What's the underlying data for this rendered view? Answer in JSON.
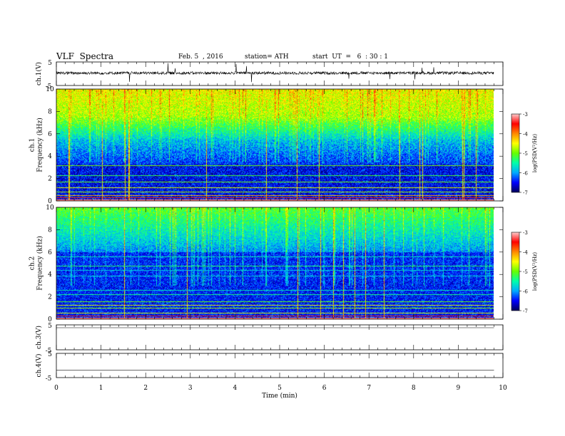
{
  "header": {
    "title": "VLF  Spectra",
    "date": "Feb. 5  , 2016",
    "station": "station= ATH",
    "start": "start  UT  =   6  : 30 : 1"
  },
  "colors": {
    "spectrogram_scale": [
      "#00005a",
      "#0000ff",
      "#00aaff",
      "#00ffaa",
      "#66ff00",
      "#ffff00",
      "#ff8800",
      "#ff0000",
      "#ffcccc"
    ],
    "trace": "#000000"
  },
  "chart_data": [
    {
      "type": "line",
      "panel": "ch1-waveform",
      "ylabel": "ch.1(V)",
      "yticks": [
        "5",
        "-5"
      ],
      "ylim": [
        -5,
        5
      ],
      "x_range_min": [
        0,
        9.8
      ],
      "series": [
        {
          "values_description_free": true,
          "baseline": 0.3,
          "amplitude": 0.7
        }
      ]
    },
    {
      "type": "heatmap",
      "panel": "ch1-spectrogram",
      "ylabel": "ch.1\nFrequency  (kHz)",
      "xlim": [
        0,
        9.8
      ],
      "ylim": [
        0,
        10
      ],
      "yticks": [
        "0",
        "2",
        "4",
        "6",
        "8",
        "10"
      ],
      "colorbar": {
        "label": "log(PSD(V²/Hz)",
        "ticks": [
          "-3",
          "-4",
          "-5",
          "-6",
          "-7"
        ],
        "range": [
          -7,
          -3
        ]
      }
    },
    {
      "type": "heatmap",
      "panel": "ch2-spectrogram",
      "ylabel": "ch.2\nFrequency  (kHz)",
      "xlim": [
        0,
        9.8
      ],
      "ylim": [
        0,
        10
      ],
      "yticks": [
        "0",
        "2",
        "4",
        "6",
        "8",
        "10"
      ],
      "colorbar": {
        "label": "log(PSD(V²/Hz)",
        "ticks": [
          "-3",
          "-4",
          "-5",
          "-6",
          "-7"
        ],
        "range": [
          -7,
          -3
        ]
      }
    },
    {
      "type": "line",
      "panel": "ch3-waveform",
      "ylabel": "ch.3(V)",
      "yticks": [
        "5",
        "-5"
      ],
      "ylim": [
        -5,
        5
      ],
      "series": [
        {
          "constant": 5
        }
      ]
    },
    {
      "type": "line",
      "panel": "ch4-waveform",
      "ylabel": "ch.4(V)",
      "yticks": [
        "5",
        "-5"
      ],
      "ylim": [
        -5,
        5
      ],
      "series": [
        {
          "constant": -2
        }
      ]
    }
  ],
  "xaxis": {
    "label": "Time  (min)",
    "ticks": [
      "0",
      "1",
      "2",
      "3",
      "4",
      "5",
      "6",
      "7",
      "8",
      "9",
      "10"
    ],
    "xlim": [
      0,
      10
    ]
  }
}
